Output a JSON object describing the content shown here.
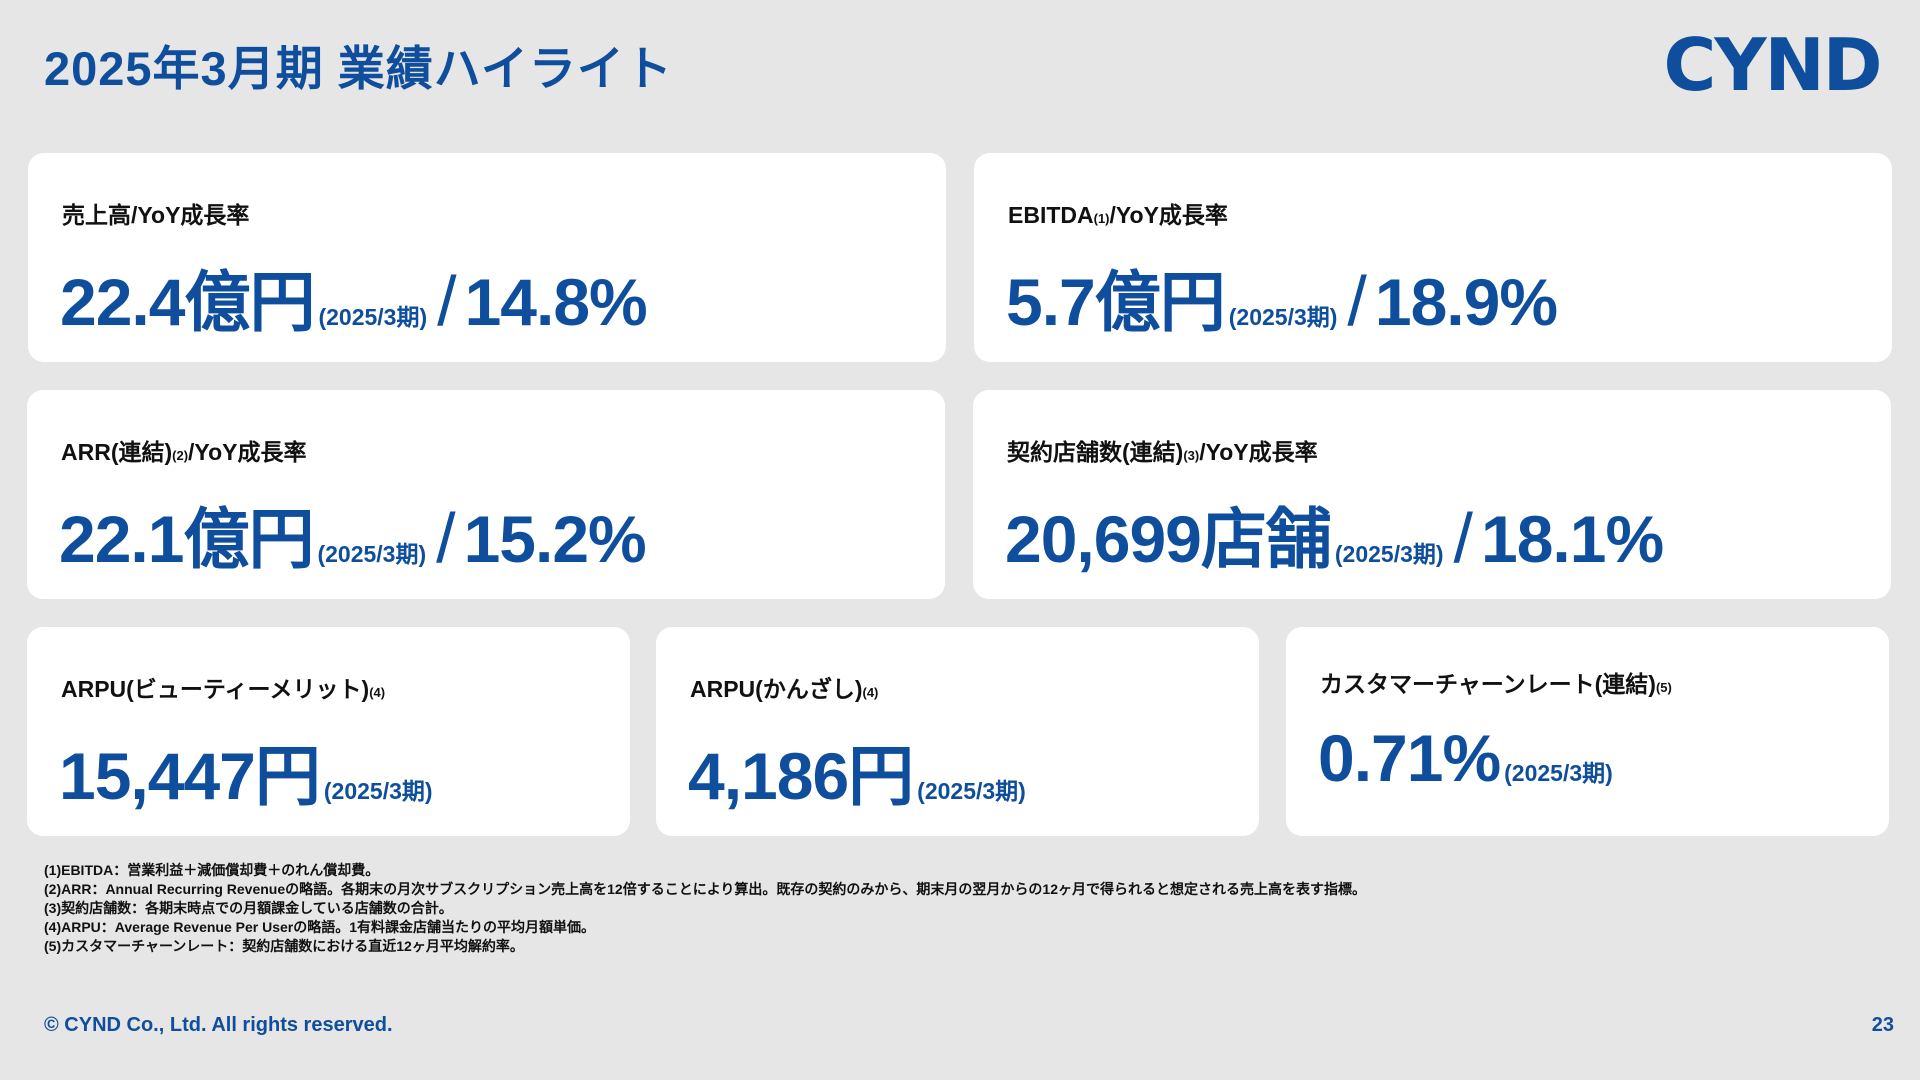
{
  "header": {
    "title": "2025年3月期 業績ハイライト",
    "logo_text": "CYND",
    "brand_color": "#0e4e9c"
  },
  "cards": [
    {
      "label": "売上高/YoY成長率",
      "value": "22.4億円",
      "period": "(2025/3期)",
      "slash": "/",
      "growth": "14.8%"
    },
    {
      "label": "EBITDA",
      "label_note": "(1)",
      "label_suffix": "/YoY成長率",
      "value": "5.7億円",
      "period": "(2025/3期)",
      "slash": "/",
      "growth": "18.9%"
    },
    {
      "label": "ARR(連結)",
      "label_note": "(2)",
      "label_suffix": "/YoY成長率",
      "value": "22.1億円",
      "period": "(2025/3期)",
      "slash": "/",
      "growth": "15.2%"
    },
    {
      "label": "契約店舗数(連結)",
      "label_note": "(3)",
      "label_suffix": "/YoY成長率",
      "value": "20,699店舗",
      "period": "(2025/3期)",
      "slash": "/",
      "growth": "18.1%"
    },
    {
      "label": "ARPU(ビューティーメリット)",
      "label_note": "(4)",
      "value": "15,447円",
      "period": "(2025/3期)"
    },
    {
      "label": "ARPU(かんざし)",
      "label_note": "(4)",
      "value": "4,186円",
      "period": "(2025/3期)"
    },
    {
      "label": "カスタマーチャーンレート(連結)",
      "label_note": "(5)",
      "value": "0.71%",
      "period": "(2025/3期)"
    }
  ],
  "notes": [
    "(1)EBITDA：営業利益＋減価償却費＋のれん償却費。",
    "(2)ARR：Annual Recurring Revenueの略語。各期末の月次サブスクリプション売上高を12倍することにより算出。既存の契約のみから、期末月の翌月からの12ヶ月で得られると想定される売上高を表す指標。",
    "(3)契約店舗数：各期末時点での月額課金している店舗数の合計。",
    "(4)ARPU：Average Revenue Per Userの略語。1有料課金店舗当たりの平均月額単価。",
    "(5)カスタマーチャーンレート：契約店舗数における直近12ヶ月平均解約率。"
  ],
  "footer": {
    "copyright": "© CYND Co., Ltd. All rights reserved.",
    "page_number": "23"
  }
}
